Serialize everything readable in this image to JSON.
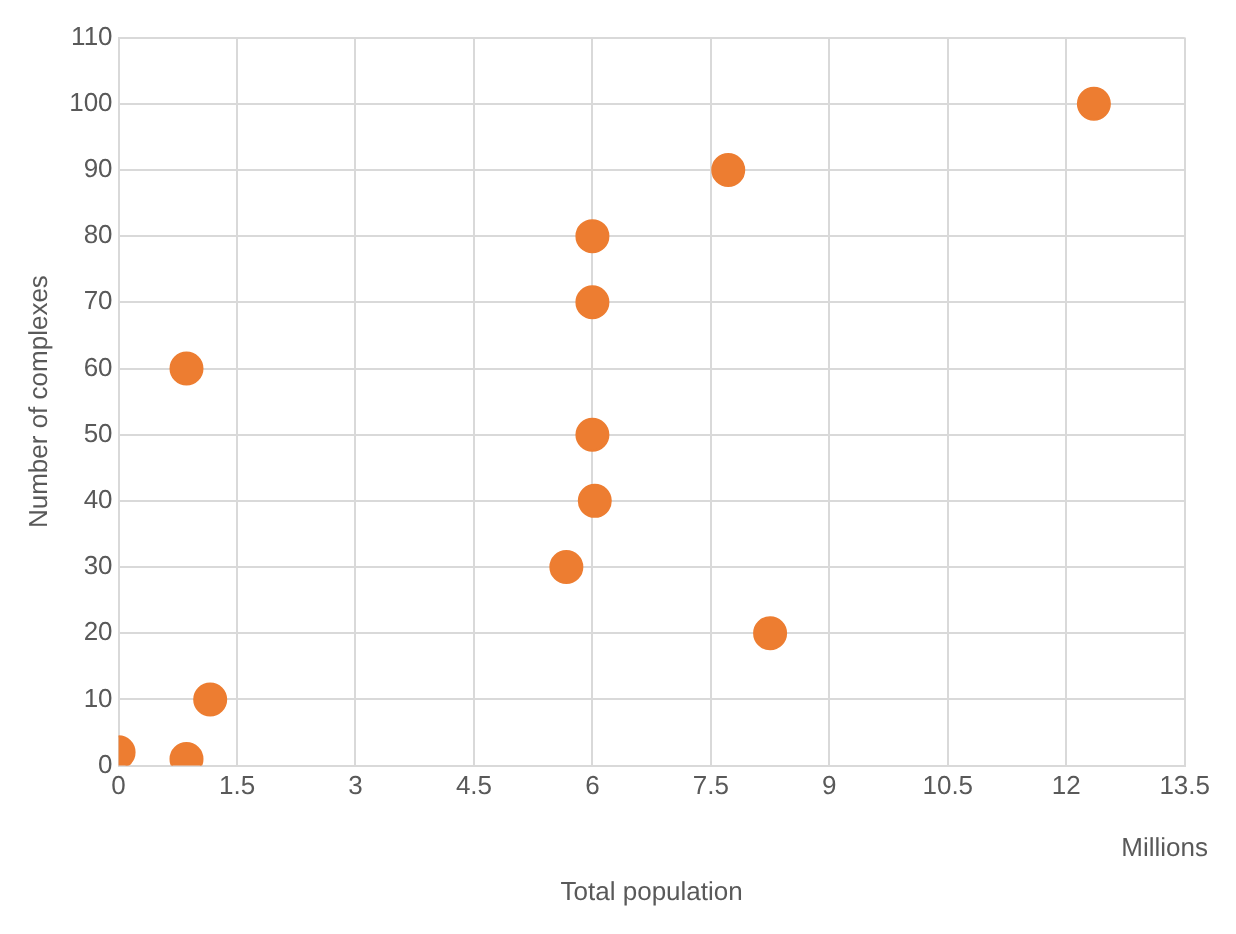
{
  "chart_data": {
    "type": "scatter",
    "xlabel": "Total population",
    "ylabel": "Number of complexes",
    "annotations": [
      "Millions"
    ],
    "x": [
      0,
      0.86,
      1.16,
      0.86,
      5.67,
      6.03,
      6,
      6,
      6,
      7.72,
      8.25,
      12.35
    ],
    "series": [
      {
        "color": "#ed7d31",
        "values": [
          2,
          1,
          10,
          60,
          30,
          40,
          50,
          70,
          80,
          90,
          20,
          100
        ]
      }
    ],
    "xlim": [
      0,
      13.5
    ],
    "xticks": [
      0,
      1.5,
      3,
      4.5,
      6,
      7.5,
      9,
      10.5,
      12,
      13.5
    ],
    "ylim": [
      0,
      110
    ],
    "yticks": [
      0,
      10,
      20,
      30,
      40,
      50,
      60,
      70,
      80,
      90,
      100,
      110
    ],
    "grid": true,
    "legend": false,
    "marker": "circle"
  }
}
